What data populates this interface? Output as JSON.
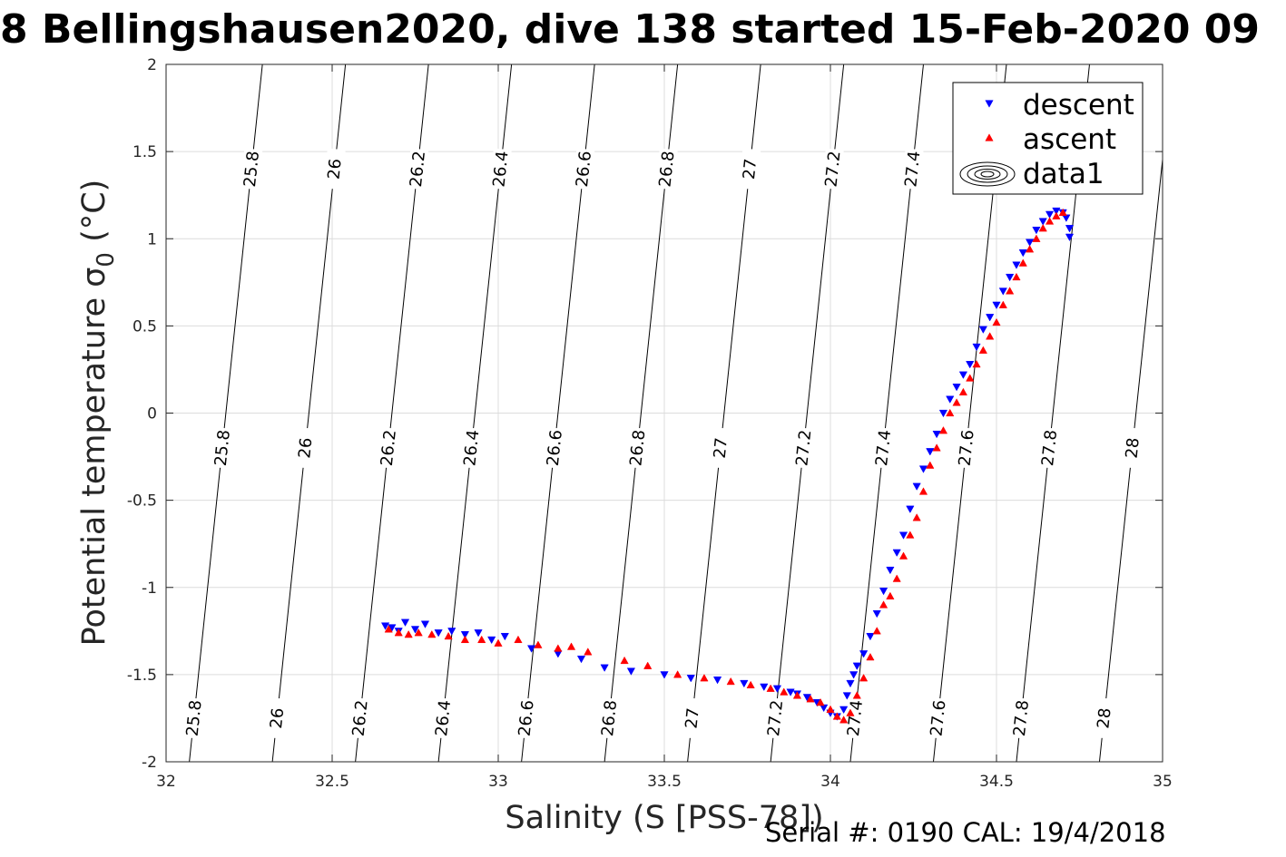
{
  "chart_data": {
    "type": "scatter",
    "title": "8 Bellingshausen2020, dive 138 started 15-Feb-2020 09",
    "xlabel": "Salinity (S [PSS-78])",
    "ylabel": "Potential temperature σ_0 (°C)",
    "xlim": [
      32,
      35
    ],
    "ylim": [
      -2,
      2
    ],
    "xticks": [
      "32",
      "32.5",
      "33",
      "33.5",
      "34",
      "34.5",
      "35"
    ],
    "yticks": [
      "-2",
      "-1.5",
      "-1",
      "-0.5",
      "0",
      "0.5",
      "1",
      "1.5",
      "2"
    ],
    "grid": true,
    "legend": {
      "position": "top-right",
      "entries": [
        {
          "label": "descent",
          "color": "#0000ff",
          "marker": "triangle-down"
        },
        {
          "label": "ascent",
          "color": "#ff0000",
          "marker": "triangle-up"
        },
        {
          "label": "data1",
          "color": "#000000",
          "marker": "contour"
        }
      ]
    },
    "contours": {
      "levels": [
        "25.8",
        "26",
        "26.2",
        "26.4",
        "26.6",
        "26.8",
        "27",
        "27.2",
        "27.4",
        "27.6",
        "27.8",
        "28"
      ],
      "lines": [
        {
          "x_bottom": 32.07,
          "x_top": 32.29
        },
        {
          "x_bottom": 32.32,
          "x_top": 32.54
        },
        {
          "x_bottom": 32.57,
          "x_top": 32.79
        },
        {
          "x_bottom": 32.82,
          "x_top": 33.04
        },
        {
          "x_bottom": 33.07,
          "x_top": 33.29
        },
        {
          "x_bottom": 33.32,
          "x_top": 33.54
        },
        {
          "x_bottom": 33.57,
          "x_top": 33.79
        },
        {
          "x_bottom": 33.82,
          "x_top": 34.04
        },
        {
          "x_bottom": 34.06,
          "x_top": 34.28
        },
        {
          "x_bottom": 34.31,
          "x_top": 34.53
        },
        {
          "x_bottom": 34.56,
          "x_top": 34.78
        },
        {
          "x_bottom": 34.81,
          "x_top": 35.03
        }
      ]
    },
    "series": [
      {
        "name": "descent",
        "color": "#0000ff",
        "marker": "triangle-down",
        "x": [
          32.66,
          32.68,
          32.7,
          32.72,
          32.75,
          32.78,
          32.82,
          32.86,
          32.9,
          32.94,
          32.98,
          33.02,
          33.1,
          33.18,
          33.25,
          33.32,
          33.4,
          33.5,
          33.58,
          33.66,
          33.74,
          33.8,
          33.84,
          33.88,
          33.9,
          33.93,
          33.96,
          33.98,
          34.0,
          34.02,
          34.04,
          34.05,
          34.06,
          34.07,
          34.08,
          34.1,
          34.12,
          34.14,
          34.16,
          34.18,
          34.2,
          34.22,
          34.24,
          34.26,
          34.28,
          34.3,
          34.32,
          34.34,
          34.36,
          34.38,
          34.4,
          34.42,
          34.44,
          34.46,
          34.48,
          34.5,
          34.52,
          34.54,
          34.56,
          34.58,
          34.6,
          34.62,
          34.64,
          34.66,
          34.68,
          34.7,
          34.71,
          34.72,
          34.72
        ],
        "y": [
          -1.22,
          -1.23,
          -1.25,
          -1.2,
          -1.24,
          -1.21,
          -1.26,
          -1.25,
          -1.27,
          -1.26,
          -1.3,
          -1.28,
          -1.35,
          -1.38,
          -1.41,
          -1.46,
          -1.48,
          -1.5,
          -1.52,
          -1.53,
          -1.55,
          -1.57,
          -1.58,
          -1.6,
          -1.61,
          -1.63,
          -1.66,
          -1.69,
          -1.72,
          -1.74,
          -1.7,
          -1.62,
          -1.55,
          -1.5,
          -1.45,
          -1.38,
          -1.28,
          -1.15,
          -1.02,
          -0.9,
          -0.8,
          -0.7,
          -0.55,
          -0.42,
          -0.32,
          -0.22,
          -0.12,
          0.0,
          0.08,
          0.15,
          0.22,
          0.28,
          0.38,
          0.48,
          0.55,
          0.62,
          0.7,
          0.78,
          0.85,
          0.92,
          0.98,
          1.05,
          1.1,
          1.14,
          1.16,
          1.15,
          1.12,
          1.06,
          1.01
        ]
      },
      {
        "name": "ascent",
        "color": "#ff0000",
        "marker": "triangle-up",
        "x": [
          32.67,
          32.7,
          32.73,
          32.76,
          32.8,
          32.85,
          32.9,
          32.95,
          33.0,
          33.06,
          33.12,
          33.18,
          33.22,
          33.27,
          33.38,
          33.45,
          33.54,
          33.62,
          33.7,
          33.76,
          33.82,
          33.86,
          33.9,
          33.94,
          33.97,
          34.0,
          34.02,
          34.04,
          34.06,
          34.08,
          34.1,
          34.12,
          34.14,
          34.16,
          34.18,
          34.2,
          34.22,
          34.24,
          34.26,
          34.28,
          34.3,
          34.32,
          34.34,
          34.36,
          34.38,
          34.4,
          34.42,
          34.44,
          34.46,
          34.48,
          34.5,
          34.52,
          34.54,
          34.56,
          34.58,
          34.6,
          34.62,
          34.64,
          34.66,
          34.68,
          34.7
        ],
        "y": [
          -1.24,
          -1.26,
          -1.27,
          -1.26,
          -1.27,
          -1.28,
          -1.3,
          -1.3,
          -1.32,
          -1.3,
          -1.33,
          -1.35,
          -1.34,
          -1.37,
          -1.42,
          -1.45,
          -1.5,
          -1.52,
          -1.54,
          -1.56,
          -1.58,
          -1.6,
          -1.62,
          -1.64,
          -1.66,
          -1.7,
          -1.74,
          -1.76,
          -1.72,
          -1.62,
          -1.52,
          -1.4,
          -1.25,
          -1.1,
          -1.05,
          -0.95,
          -0.82,
          -0.7,
          -0.6,
          -0.45,
          -0.3,
          -0.2,
          -0.1,
          0.0,
          0.06,
          0.12,
          0.2,
          0.28,
          0.36,
          0.44,
          0.52,
          0.62,
          0.7,
          0.78,
          0.86,
          0.94,
          1.0,
          1.06,
          1.1,
          1.13,
          1.15
        ]
      }
    ],
    "annotation": "Serial #: 0190  CAL: 19/4/2018"
  }
}
